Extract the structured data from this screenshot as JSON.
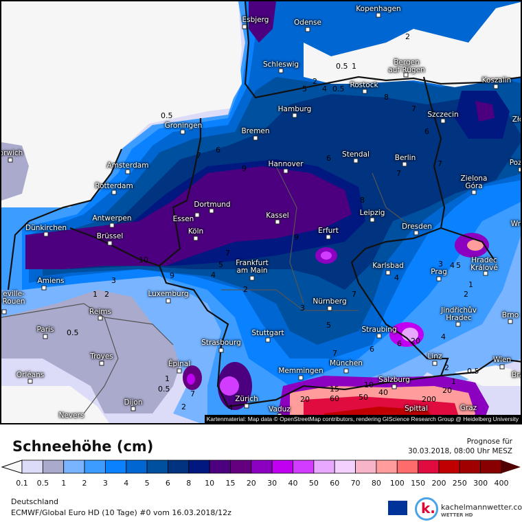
{
  "map": {
    "cities": [
      "Esbjerg",
      "Odense",
      "Kopenhagen",
      "Schleswig",
      "Bergen\nauf Rügen",
      "Rostock",
      "Koszalin",
      "Hamburg",
      "Szczecin",
      "Groningen",
      "Bremen",
      "Stendal",
      "Berlin",
      "Hannover",
      "Amsterdam",
      "Rotterdam",
      "Zielona\nGóra",
      "Pozn",
      "orwich",
      "Dortmund",
      "Kassel",
      "Leipzig",
      "Essen",
      "Antwerpen",
      "Wro",
      "Dünkirchen",
      "Dresden",
      "Erfurt",
      "Köln",
      "Brüssel",
      "Frankfurt\nam Main",
      "Karlsbad",
      "Hradec\nKrálové",
      "Prag",
      "Amiens",
      "Luxemburg",
      "eville-\nRouen",
      "Nürnberg",
      "Reims",
      "Jindřichův\nHradec",
      "Brno",
      "Paris",
      "Straubing",
      "Stuttgart",
      "Strasbourg",
      "Troyes",
      "Linz",
      "Wien",
      "München",
      "Épinal",
      "Memmingen",
      "Orléans",
      "Salzburg",
      "Zürich",
      "Dijon",
      "Vaduz",
      "Spittal",
      "Nevers",
      "Graz",
      "Bra",
      "Zło"
    ],
    "contour_labels": [
      "0.5",
      "6",
      "7",
      "9",
      "2",
      "0.5",
      "1",
      "5",
      "2",
      "4",
      "0.5",
      "8",
      "7",
      "6",
      "6",
      "7",
      "8",
      "7",
      "10",
      "9",
      "7",
      "5",
      "4",
      "2",
      "1",
      "2",
      "3",
      "0.5",
      "1",
      "0.5",
      "7",
      "2",
      "4",
      "9",
      "7",
      "3",
      "5",
      "7",
      "6",
      "6",
      "20",
      "4",
      "4",
      "3",
      "5",
      "1",
      "2",
      "4",
      "2",
      "0.5",
      "1",
      "15",
      "60",
      "10",
      "50",
      "40",
      "20",
      "200",
      "20"
    ],
    "attribution": "Kartenmaterial: Map data © OpenStreetMap contributors, rendering GIScience Research Group @ Heidelberg University"
  },
  "header": {
    "title": "Schneehöhe (cm)",
    "forecast_label": "Prognose für",
    "forecast_time": "30.03.2018, 08:00 Uhr MESZ"
  },
  "legend": {
    "ticks": [
      "0.1",
      "0.5",
      "1",
      "2",
      "3",
      "4",
      "5",
      "6",
      "8",
      "10",
      "15",
      "20",
      "30",
      "40",
      "50",
      "60",
      "70",
      "80",
      "100",
      "150",
      "200",
      "250",
      "300",
      "400"
    ],
    "colors": [
      "#dcdcf8",
      "#aaaacc",
      "#78b4ff",
      "#3c9cff",
      "#0a82ff",
      "#0066d2",
      "#0050a0",
      "#003480",
      "#001880",
      "#4c0080",
      "#640080",
      "#8c00c0",
      "#c000f0",
      "#d23cff",
      "#e8a8ff",
      "#f4d0ff",
      "#f8b4c8",
      "#ff9c9c",
      "#ff6c6c",
      "#e00c40",
      "#c00000",
      "#a00000",
      "#880000"
    ],
    "below_color": "#f8f8f8",
    "above_color": "#500000"
  },
  "footer": {
    "region": "Deutschland",
    "model": "ECMWF/Global Euro HD (10 Tage) #0 vom 16.03.2018/12z",
    "brand": "kachelmannwetter.com",
    "brand_sub": "WETTER HD",
    "logo_letter": "k."
  }
}
